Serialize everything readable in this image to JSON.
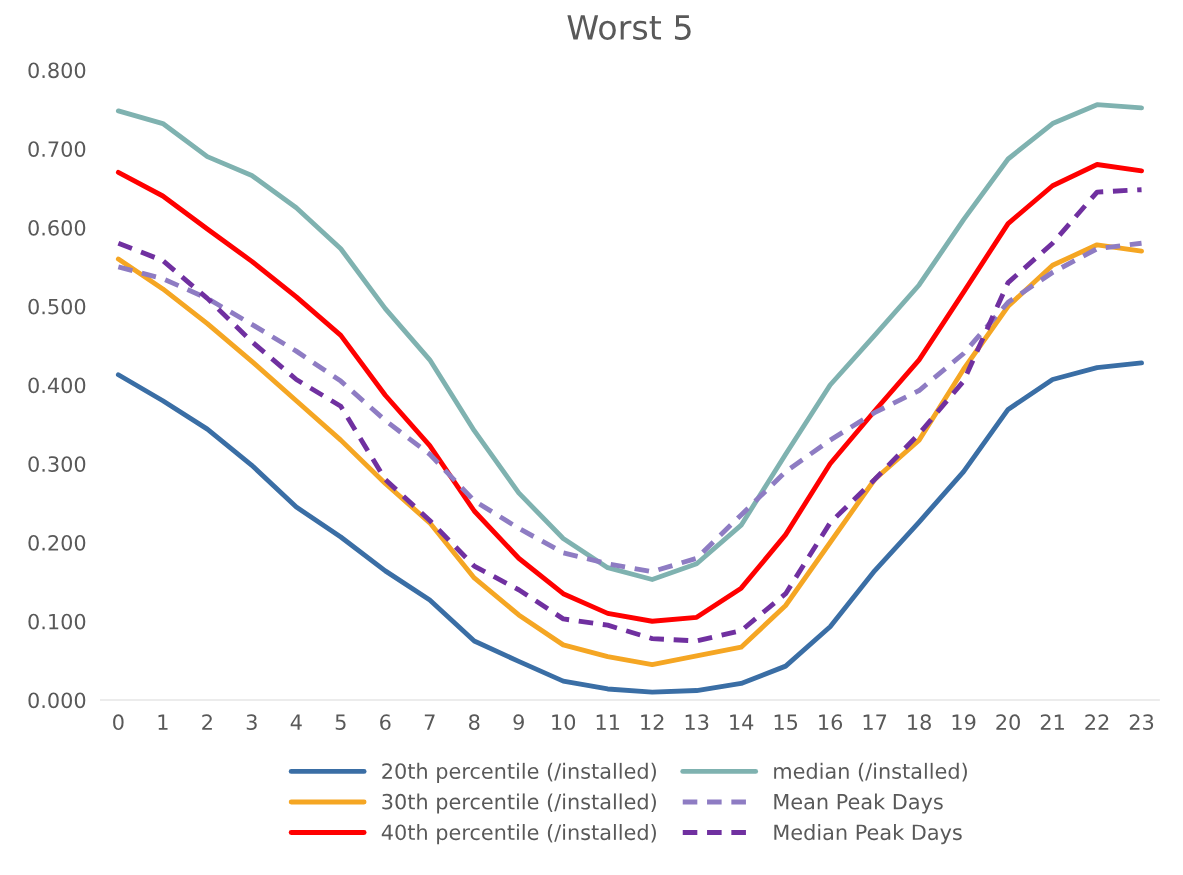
{
  "chart_data": {
    "type": "line",
    "title": "Worst 5",
    "categories": [
      "0",
      "1",
      "2",
      "3",
      "4",
      "5",
      "6",
      "7",
      "8",
      "9",
      "10",
      "11",
      "12",
      "13",
      "14",
      "15",
      "16",
      "17",
      "18",
      "19",
      "20",
      "21",
      "22",
      "23"
    ],
    "ylim": [
      0,
      0.8
    ],
    "yticks": [
      {
        "value": 0,
        "label": "0.000"
      },
      {
        "value": 0.1,
        "label": "0.100"
      },
      {
        "value": 0.2,
        "label": "0.200"
      },
      {
        "value": 0.3,
        "label": "0.300"
      },
      {
        "value": 0.4,
        "label": "0.400"
      },
      {
        "value": 0.5,
        "label": "0.500"
      },
      {
        "value": 0.6,
        "label": "0.600"
      },
      {
        "value": 0.7,
        "label": "0.700"
      },
      {
        "value": 0.8,
        "label": "0.800"
      }
    ],
    "grid": false,
    "legend": "bottom",
    "marker": "none",
    "series": [
      {
        "name": "20th percentile (/installed)",
        "color": "#3a6ea5",
        "line_style": "solid",
        "values": [
          0.413,
          0.38,
          0.344,
          0.298,
          0.245,
          0.207,
          0.164,
          0.127,
          0.075,
          0.049,
          0.024,
          0.014,
          0.01,
          0.012,
          0.021,
          0.043,
          0.093,
          0.164,
          0.226,
          0.29,
          0.369,
          0.407,
          0.422,
          0.428
        ]
      },
      {
        "name": "30th percentile (/installed)",
        "color": "#f5a623",
        "line_style": "solid",
        "values": [
          0.56,
          0.522,
          0.478,
          0.43,
          0.38,
          0.33,
          0.275,
          0.225,
          0.155,
          0.108,
          0.07,
          0.055,
          0.045,
          0.056,
          0.067,
          0.12,
          0.2,
          0.28,
          0.33,
          0.42,
          0.5,
          0.552,
          0.578,
          0.57
        ]
      },
      {
        "name": "40th percentile (/installed)",
        "color": "#ff0000",
        "line_style": "solid",
        "values": [
          0.67,
          0.64,
          0.598,
          0.557,
          0.512,
          0.463,
          0.387,
          0.323,
          0.24,
          0.18,
          0.135,
          0.11,
          0.1,
          0.105,
          0.142,
          0.21,
          0.3,
          0.367,
          0.432,
          0.518,
          0.605,
          0.653,
          0.68,
          0.672
        ]
      },
      {
        "name": "median (/installed)",
        "color": "#7fb2b0",
        "line_style": "solid",
        "values": [
          0.748,
          0.732,
          0.69,
          0.666,
          0.625,
          0.573,
          0.497,
          0.432,
          0.342,
          0.263,
          0.205,
          0.168,
          0.153,
          0.173,
          0.222,
          0.312,
          0.4,
          0.463,
          0.527,
          0.61,
          0.687,
          0.732,
          0.756,
          0.752
        ]
      },
      {
        "name": "Mean Peak Days",
        "color": "#8e7cc3",
        "line_style": "dashed",
        "values": [
          0.55,
          0.535,
          0.51,
          0.477,
          0.443,
          0.405,
          0.355,
          0.312,
          0.253,
          0.218,
          0.187,
          0.173,
          0.163,
          0.18,
          0.235,
          0.29,
          0.33,
          0.365,
          0.393,
          0.44,
          0.505,
          0.543,
          0.573,
          0.58
        ]
      },
      {
        "name": "Median Peak Days",
        "color": "#7030a0",
        "line_style": "dashed",
        "values": [
          0.58,
          0.558,
          0.51,
          0.455,
          0.407,
          0.373,
          0.28,
          0.228,
          0.17,
          0.14,
          0.103,
          0.095,
          0.078,
          0.075,
          0.088,
          0.135,
          0.225,
          0.28,
          0.338,
          0.405,
          0.53,
          0.58,
          0.645,
          0.648
        ]
      }
    ]
  }
}
